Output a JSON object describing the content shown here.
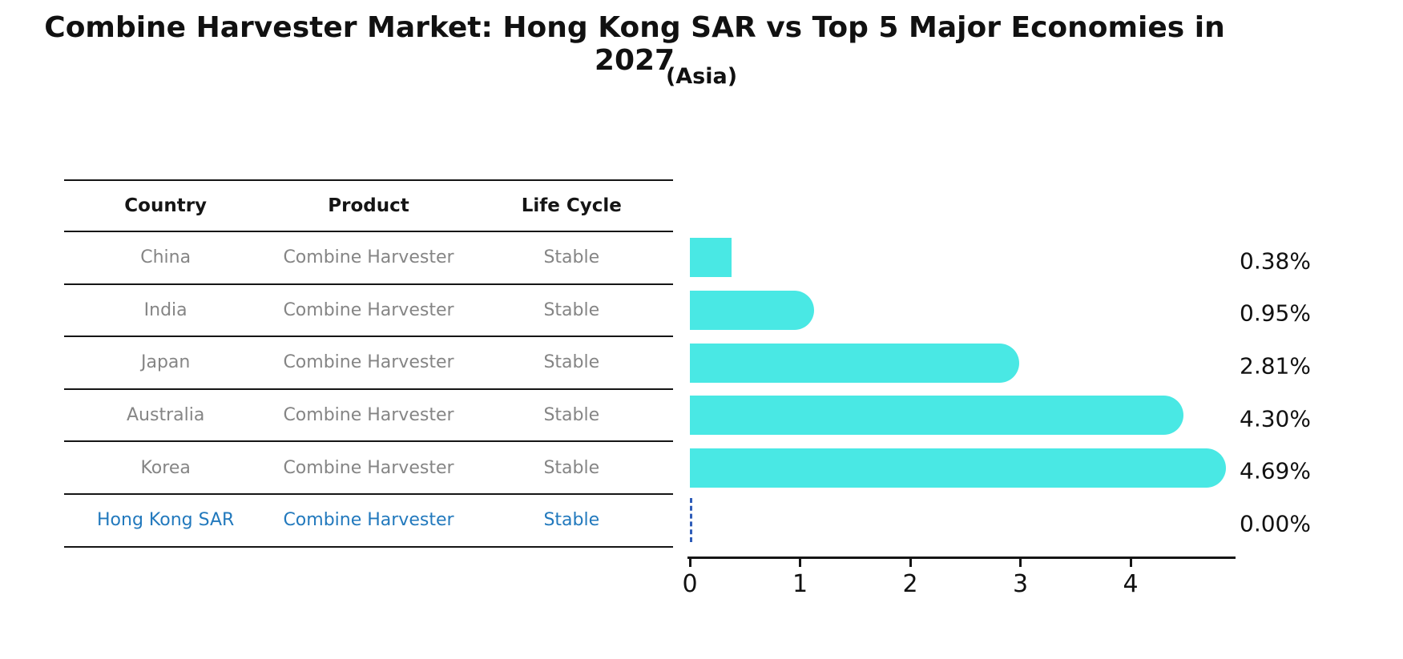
{
  "title": "Combine Harvester Market: Hong Kong SAR vs Top 5 Major Economies in 2027",
  "subtitle": "(Asia)",
  "table": {
    "headers": [
      "Country",
      "Product",
      "Life Cycle"
    ],
    "rows": [
      {
        "country": "China",
        "product": "Combine Harvester",
        "life_cycle": "Stable",
        "highlight": false
      },
      {
        "country": "India",
        "product": "Combine Harvester",
        "life_cycle": "Stable",
        "highlight": false
      },
      {
        "country": "Japan",
        "product": "Combine Harvester",
        "life_cycle": "Stable",
        "highlight": false
      },
      {
        "country": "Australia",
        "product": "Combine Harvester",
        "life_cycle": "Stable",
        "highlight": false
      },
      {
        "country": "Korea",
        "product": "Combine Harvester",
        "life_cycle": "Stable",
        "highlight": false
      },
      {
        "country": "Hong Kong SAR",
        "product": "Combine Harvester",
        "life_cycle": "Stable",
        "highlight": true
      }
    ]
  },
  "chart_data": {
    "type": "bar",
    "orientation": "horizontal",
    "title": "Combine Harvester Market: Hong Kong SAR vs Top 5 Major Economies in 2027",
    "subtitle": "(Asia)",
    "categories": [
      "China",
      "India",
      "Japan",
      "Australia",
      "Korea",
      "Hong Kong SAR"
    ],
    "values": [
      0.38,
      0.95,
      2.81,
      4.3,
      4.69,
      0.0
    ],
    "value_labels": [
      "0.38%",
      "0.95%",
      "2.81%",
      "4.30%",
      "4.69%",
      "0.00%"
    ],
    "xlim": [
      0,
      4.94
    ],
    "xticks": [
      0,
      1,
      2,
      3,
      4
    ],
    "xtick_labels": [
      "0",
      "1",
      "2",
      "3",
      "4"
    ],
    "grid": false,
    "legend": false,
    "bar_color": "#49e8e4",
    "highlight_index": 5,
    "highlight_marker": "dashed-zero-line",
    "highlight_color": "#2e5cb8"
  },
  "colors": {
    "bar": "#49e8e4",
    "highlight_text": "#2279bd",
    "table_text": "#858585",
    "header_text": "#151515",
    "axis": "#151515",
    "background": "#ffffff"
  }
}
